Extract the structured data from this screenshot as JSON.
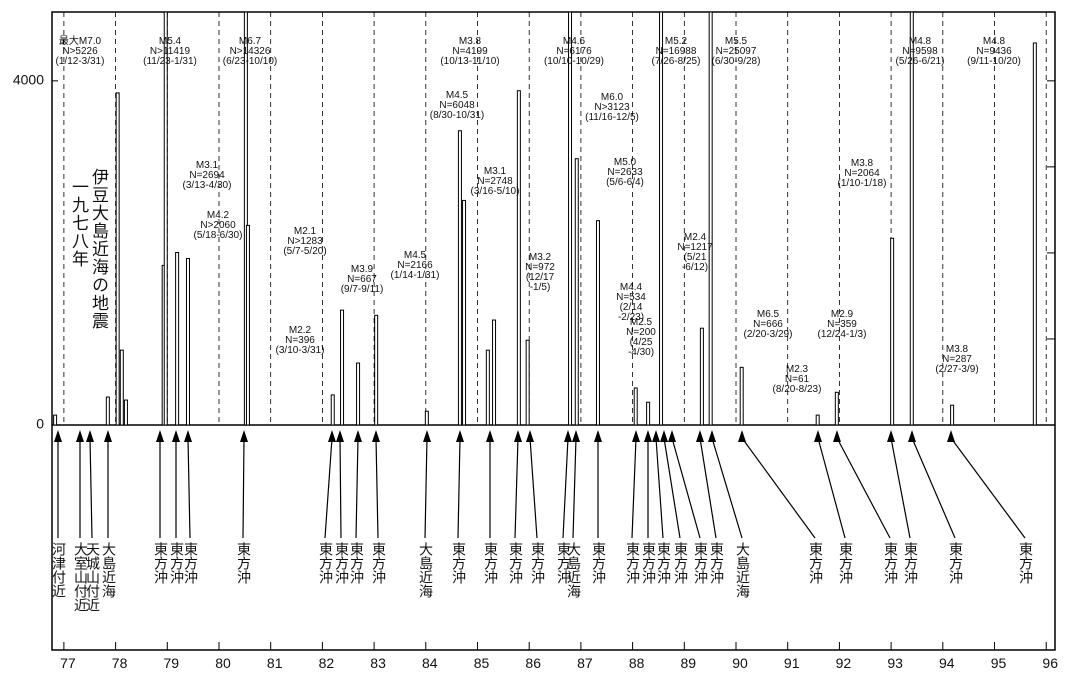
{
  "chart_data": {
    "type": "bar",
    "title_lines": [
      "伊豆大島近海の地震",
      "一九七八年"
    ],
    "x": [
      76.83,
      77.85,
      78.04,
      78.12,
      78.2,
      78.93,
      78.97,
      79.19,
      79.4,
      80.52,
      80.56,
      82.2,
      82.38,
      82.69,
      83.04,
      84.02,
      84.66,
      84.74,
      85.2,
      85.32,
      85.8,
      85.97,
      86.79,
      86.92,
      87.33,
      88.06,
      88.3,
      88.55,
      89.34,
      89.51,
      90.11,
      91.58,
      91.95,
      93.02,
      93.4,
      94.18,
      95.78
    ],
    "values": [
      115,
      325,
      3860,
      870,
      290,
      1855,
      4800,
      2005,
      1935,
      4800,
      2320,
      350,
      1335,
      720,
      1275,
      160,
      3420,
      2610,
      870,
      1220,
      3885,
      985,
      4800,
      3095,
      2375,
      430,
      265,
      4800,
      1125,
      4800,
      670,
      115,
      380,
      2170,
      4800,
      230,
      4440
    ],
    "color": "#000000",
    "xlim": [
      76.77,
      96.17
    ],
    "xticks": [
      77,
      78,
      79,
      80,
      81,
      82,
      83,
      84,
      85,
      86,
      87,
      88,
      89,
      90,
      91,
      92,
      93,
      94,
      95,
      96
    ],
    "ylim": [
      0,
      4800
    ],
    "yticks": [
      0,
      4000
    ],
    "right_ticks": [
      1000,
      2000,
      3000,
      4000
    ],
    "grid": true,
    "annotations": [
      [
        "最大M7.0",
        "N>5226",
        "(1/12-3/31)"
      ],
      [
        "M5.4",
        "N>11419",
        "(11/23-1/31)"
      ],
      [
        "M6.7",
        "N>14326",
        "(6/23-10/10)"
      ],
      [
        "M3.1",
        "N=2694",
        "(3/13-4/30)"
      ],
      [
        "M4.2",
        "N>2060",
        "(5/18-6/30)"
      ],
      [
        "M2.1",
        "N>1283",
        "(5/7-5/20)"
      ],
      [
        "M2.2",
        "N=396",
        "(3/10-3/31)"
      ],
      [
        "M3.9",
        "N=667",
        "(9/7-9/11)"
      ],
      [
        "M4.5",
        "N=2166",
        "(1/14-1/31)"
      ],
      [
        "M3.8",
        "N=4199",
        "(10/13-11/10)"
      ],
      [
        "M4.5",
        "N=6048",
        "(8/30-10/31)"
      ],
      [
        "M3.1",
        "N=2748",
        "(3/16-5/10)"
      ],
      [
        "M3.2",
        "N=972",
        "(12/17",
        "-1/5)"
      ],
      [
        "M4.6",
        "N=6176",
        "(10/10-10/29)"
      ],
      [
        "M6.0",
        "N>3123",
        "(11/16-12/5)"
      ],
      [
        "M5.0",
        "N=2633",
        "(5/6-6/4)"
      ],
      [
        "M5.2",
        "N=16988",
        "(7/26-8/25)"
      ],
      [
        "M5.5",
        "N=25097",
        "(6/30-9/28)"
      ],
      [
        "M2.4",
        "N=1217",
        "(5/21",
        "-6/12)"
      ],
      [
        "M4.4",
        "N=534",
        "(2/14",
        "-2/23)"
      ],
      [
        "M2.5",
        "N=200",
        "(4/25",
        "-4/30)"
      ],
      [
        "M6.5",
        "N=666",
        "(2/20-3/29)"
      ],
      [
        "M2.3",
        "N=61",
        "(8/20-8/23)"
      ],
      [
        "M2.9",
        "N=359",
        "(12/24-1/3)"
      ],
      [
        "M3.8",
        "N=2064",
        "(1/10-1/18)"
      ],
      [
        "M4.8",
        "N=9598",
        "(5/26-6/21)"
      ],
      [
        "M3.8",
        "N=287",
        "(2/27-3/9)"
      ],
      [
        "M4.8",
        "N=9436",
        "(9/11-10/20)"
      ]
    ],
    "locations": [
      "河津付近",
      "大室山付近",
      "天城山付近",
      "大島近海",
      "東方沖",
      "東方沖",
      "東方沖",
      "東方沖",
      "東方沖",
      "東方沖",
      "東方沖",
      "東方沖",
      "大島近海",
      "東方沖",
      "東方沖",
      "東方沖",
      "東方沖",
      "東方沖",
      "大島近海",
      "東方沖",
      "東方沖",
      "東方沖",
      "東方沖",
      "東方沖",
      "東方沖",
      "東方沖",
      "大島近海",
      "東方沖",
      "東方沖",
      "東方沖",
      "東方沖",
      "東方沖",
      "東方沖"
    ]
  }
}
